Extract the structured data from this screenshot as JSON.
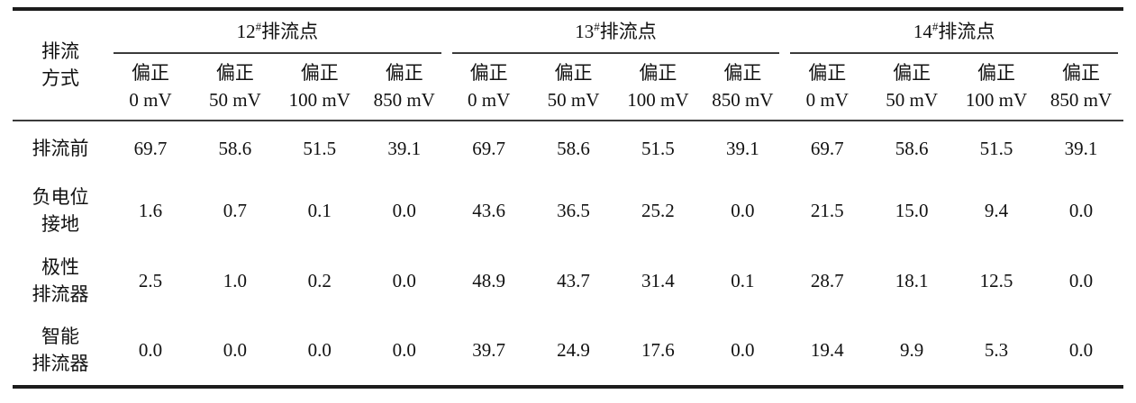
{
  "table": {
    "corner_header": {
      "lines": [
        "排流",
        "方式"
      ]
    },
    "groups": [
      {
        "num": "12",
        "sup": "#",
        "suffix": "排流点"
      },
      {
        "num": "13",
        "sup": "#",
        "suffix": "排流点"
      },
      {
        "num": "14",
        "sup": "#",
        "suffix": "排流点"
      }
    ],
    "sub_label": "偏正",
    "sub_values": [
      "0 mV",
      "50 mV",
      "100 mV",
      "850 mV"
    ],
    "rows": [
      {
        "label_lines": [
          "排流前"
        ],
        "values": [
          "69.7",
          "58.6",
          "51.5",
          "39.1",
          "69.7",
          "58.6",
          "51.5",
          "39.1",
          "69.7",
          "58.6",
          "51.5",
          "39.1"
        ]
      },
      {
        "label_lines": [
          "负电位",
          "接地"
        ],
        "values": [
          "1.6",
          "0.7",
          "0.1",
          "0.0",
          "43.6",
          "36.5",
          "25.2",
          "0.0",
          "21.5",
          "15.0",
          "9.4",
          "0.0"
        ]
      },
      {
        "label_lines": [
          "极性",
          "排流器"
        ],
        "values": [
          "2.5",
          "1.0",
          "0.2",
          "0.0",
          "48.9",
          "43.7",
          "31.4",
          "0.1",
          "28.7",
          "18.1",
          "12.5",
          "0.0"
        ]
      },
      {
        "label_lines": [
          "智能",
          "排流器"
        ],
        "values": [
          "0.0",
          "0.0",
          "0.0",
          "0.0",
          "39.7",
          "24.9",
          "17.6",
          "0.0",
          "19.4",
          "9.9",
          "5.3",
          "0.0"
        ]
      }
    ],
    "colors": {
      "thick_rule": "#1c1c1c",
      "thin_rule": "#3b3b3b",
      "text": "#111111",
      "background": "#ffffff"
    }
  }
}
